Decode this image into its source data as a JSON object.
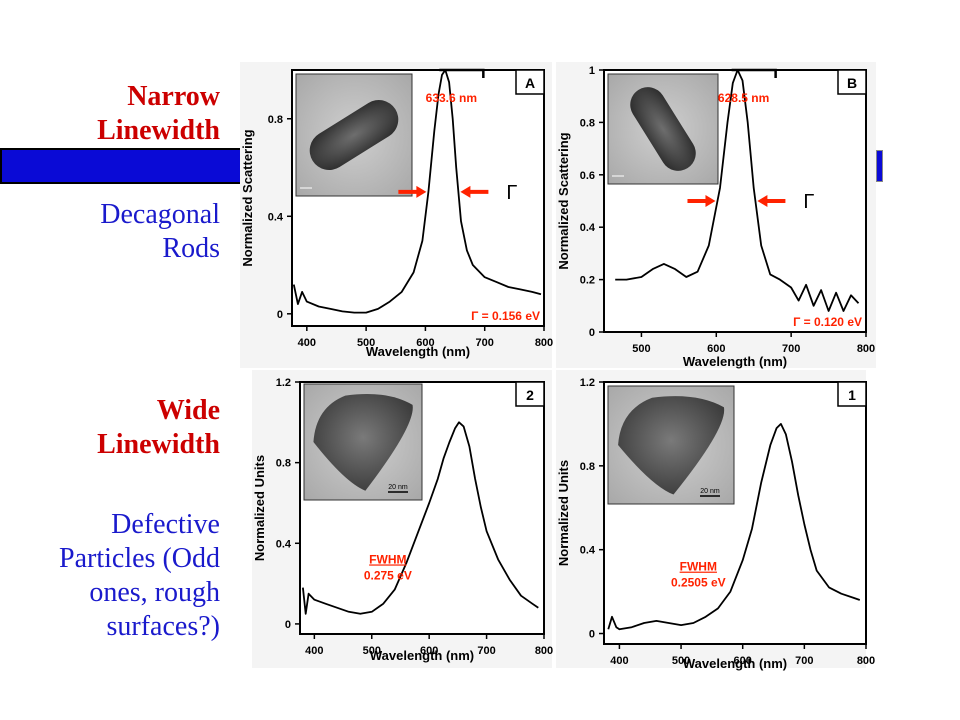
{
  "labels": {
    "narrow_line1": "Narrow",
    "narrow_line2": "Linewidth",
    "decagonal_line1": "Decagonal",
    "decagonal_line2": "Rods",
    "wide_line1": "Wide",
    "wide_line2": "Linewidth",
    "defective_line1": "Defective",
    "defective_line2": "Particles (Odd",
    "defective_line3": "ones, rough",
    "defective_line4": "surfaces?)"
  },
  "colors": {
    "red": "#cc0000",
    "blue": "#1a1acc",
    "bar": "#0a0ad6",
    "annotation": "#ff2200"
  },
  "chart_data": [
    {
      "type": "line",
      "panel_label": "A",
      "xlabel": "Wavelength (nm)",
      "ylabel": "Normalized Scattering",
      "xlim": [
        375,
        800
      ],
      "ylim": [
        -0.05,
        1.0
      ],
      "xticks": [
        400,
        500,
        600,
        700,
        800
      ],
      "yticks": [
        0,
        0.4,
        0.8
      ],
      "ytick_labels": [
        "0",
        "0.4",
        "0.8"
      ],
      "peak_label": "633.6 nm",
      "gamma_symbol": "Γ",
      "width_label": "Γ =  0.156 eV",
      "image": "tem-rod-image",
      "series": [
        {
          "x": [
            378,
            385,
            392,
            400,
            420,
            440,
            460,
            480,
            500,
            520,
            540,
            560,
            580,
            595,
            605,
            615,
            622,
            628,
            633.6,
            640,
            646,
            652,
            660,
            670,
            680,
            700,
            720,
            740,
            760,
            780,
            795
          ],
          "y": [
            0.12,
            0.04,
            0.09,
            0.05,
            0.03,
            0.02,
            0.01,
            0.005,
            0.005,
            0.02,
            0.05,
            0.09,
            0.17,
            0.3,
            0.5,
            0.75,
            0.9,
            0.98,
            1.0,
            0.95,
            0.8,
            0.6,
            0.38,
            0.26,
            0.2,
            0.15,
            0.13,
            0.11,
            0.1,
            0.09,
            0.08
          ]
        }
      ]
    },
    {
      "type": "line",
      "panel_label": "B",
      "xlabel": "Wavelength (nm)",
      "ylabel": "Normalized Scattering",
      "xlim": [
        450,
        800
      ],
      "ylim": [
        0,
        1.0
      ],
      "xticks": [
        500,
        600,
        700,
        800
      ],
      "yticks": [
        0,
        0.2,
        0.4,
        0.6,
        0.8,
        1
      ],
      "ytick_labels": [
        "0",
        "0.2",
        "0.4",
        "0.6",
        "0.8",
        "1"
      ],
      "peak_label": "628.5 nm",
      "gamma_symbol": "Γ",
      "width_label": "Γ =  0.120 eV",
      "image": "tem-rod-image",
      "series": [
        {
          "x": [
            465,
            480,
            500,
            515,
            530,
            545,
            560,
            575,
            590,
            605,
            615,
            622,
            628.5,
            635,
            642,
            650,
            660,
            672,
            685,
            700,
            710,
            720,
            730,
            740,
            750,
            760,
            770,
            780,
            790
          ],
          "y": [
            0.2,
            0.2,
            0.21,
            0.24,
            0.26,
            0.24,
            0.21,
            0.23,
            0.33,
            0.55,
            0.8,
            0.95,
            1.0,
            0.96,
            0.8,
            0.55,
            0.33,
            0.22,
            0.2,
            0.17,
            0.12,
            0.18,
            0.1,
            0.16,
            0.08,
            0.15,
            0.08,
            0.14,
            0.11
          ]
        }
      ]
    },
    {
      "type": "line",
      "panel_label": "2",
      "xlabel": "Wavelength (nm)",
      "ylabel": "Normalized Units",
      "xlim": [
        375,
        800
      ],
      "ylim": [
        -0.05,
        1.2
      ],
      "xticks": [
        400,
        500,
        600,
        700,
        800
      ],
      "yticks": [
        0,
        0.4,
        0.8,
        1.2
      ],
      "ytick_labels": [
        "0",
        "0.4",
        "0.8",
        "1.2"
      ],
      "fwhm_label": "FWHM",
      "fwhm_value": "0.275 eV",
      "image": "tem-triangle-image",
      "scale_text": "20 nm",
      "series": [
        {
          "x": [
            380,
            385,
            390,
            400,
            420,
            440,
            460,
            480,
            500,
            520,
            540,
            560,
            580,
            600,
            615,
            625,
            635,
            645,
            652,
            660,
            670,
            680,
            690,
            700,
            720,
            740,
            760,
            780,
            790
          ],
          "y": [
            0.18,
            0.05,
            0.15,
            0.12,
            0.1,
            0.08,
            0.06,
            0.05,
            0.06,
            0.1,
            0.17,
            0.3,
            0.45,
            0.6,
            0.72,
            0.82,
            0.9,
            0.97,
            1.0,
            0.98,
            0.88,
            0.72,
            0.58,
            0.46,
            0.32,
            0.22,
            0.14,
            0.1,
            0.08
          ]
        }
      ]
    },
    {
      "type": "line",
      "panel_label": "1",
      "xlabel": "Wavelength (nm)",
      "ylabel": "Normalized Units",
      "xlim": [
        375,
        800
      ],
      "ylim": [
        -0.05,
        1.2
      ],
      "xticks": [
        400,
        500,
        600,
        700,
        800
      ],
      "yticks": [
        0,
        0.4,
        0.8,
        1.2
      ],
      "ytick_labels": [
        "0",
        "0.4",
        "0.8",
        "1.2"
      ],
      "fwhm_label": "FWHM",
      "fwhm_value": "0.2505 eV",
      "image": "tem-triangle-image",
      "scale_text": "20 nm",
      "series": [
        {
          "x": [
            382,
            388,
            395,
            400,
            420,
            440,
            460,
            480,
            500,
            520,
            540,
            560,
            580,
            600,
            615,
            630,
            645,
            655,
            662,
            670,
            680,
            690,
            700,
            710,
            720,
            740,
            760,
            780,
            790
          ],
          "y": [
            0.02,
            0.08,
            0.03,
            0.02,
            0.03,
            0.05,
            0.06,
            0.05,
            0.04,
            0.05,
            0.08,
            0.12,
            0.2,
            0.35,
            0.5,
            0.72,
            0.9,
            0.98,
            1.0,
            0.95,
            0.82,
            0.66,
            0.52,
            0.4,
            0.3,
            0.22,
            0.19,
            0.17,
            0.16
          ]
        }
      ]
    }
  ]
}
